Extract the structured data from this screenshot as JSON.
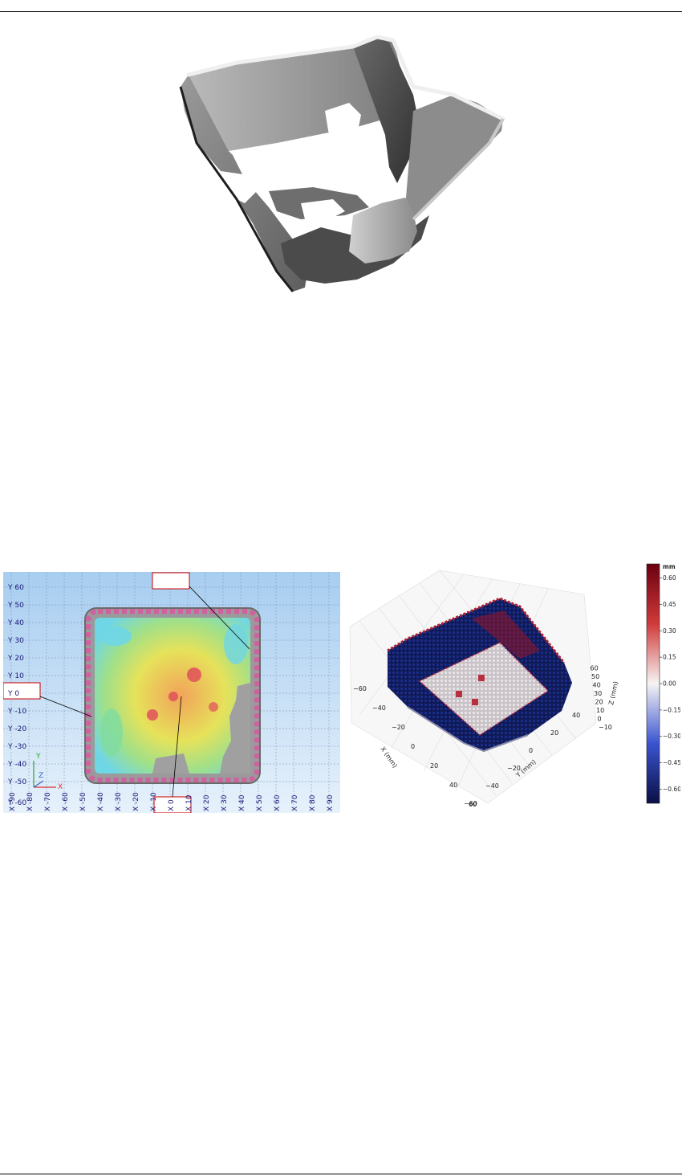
{
  "figure_heatmap": {
    "y_labels": [
      "Y 60",
      "Y 50",
      "Y 40",
      "Y 30",
      "Y 20",
      "Y 10",
      "Y 0",
      "Y -10",
      "Y -20",
      "Y -30",
      "Y -40",
      "Y -50",
      "Y -60"
    ],
    "x_labels": [
      "X -90",
      "X -80",
      "X -70",
      "X -60",
      "X -50",
      "X -40",
      "X -30",
      "X -20",
      "X -10",
      "X 0",
      "X 10",
      "X 20",
      "X 30",
      "X 40",
      "X 50",
      "X 60",
      "X 70",
      "X 80",
      "X 90"
    ],
    "axis_triad": {
      "y": "Y",
      "z": "Z",
      "x": "X"
    }
  },
  "chart_data": {
    "type": "scatter",
    "colorbar": {
      "unit": "mm",
      "ticks": [
        "0.60",
        "0.45",
        "0.30",
        "0.15",
        "0.00",
        "−0.15",
        "−0.30",
        "−0.45",
        "−0.60"
      ],
      "range": [
        -0.68,
        0.68
      ]
    },
    "x_axis": {
      "label": "X (mm)",
      "ticks": [
        "−60",
        "−40",
        "−20",
        "0",
        "20",
        "40",
        "60"
      ]
    },
    "y_axis": {
      "label": "Y (mm)",
      "ticks": [
        "−60",
        "−40",
        "−20",
        "0",
        "20",
        "40"
      ]
    },
    "z_axis": {
      "label": "Z (mm)",
      "ticks": [
        "−10",
        "0",
        "10",
        "20",
        "30",
        "40",
        "50",
        "60"
      ]
    }
  }
}
